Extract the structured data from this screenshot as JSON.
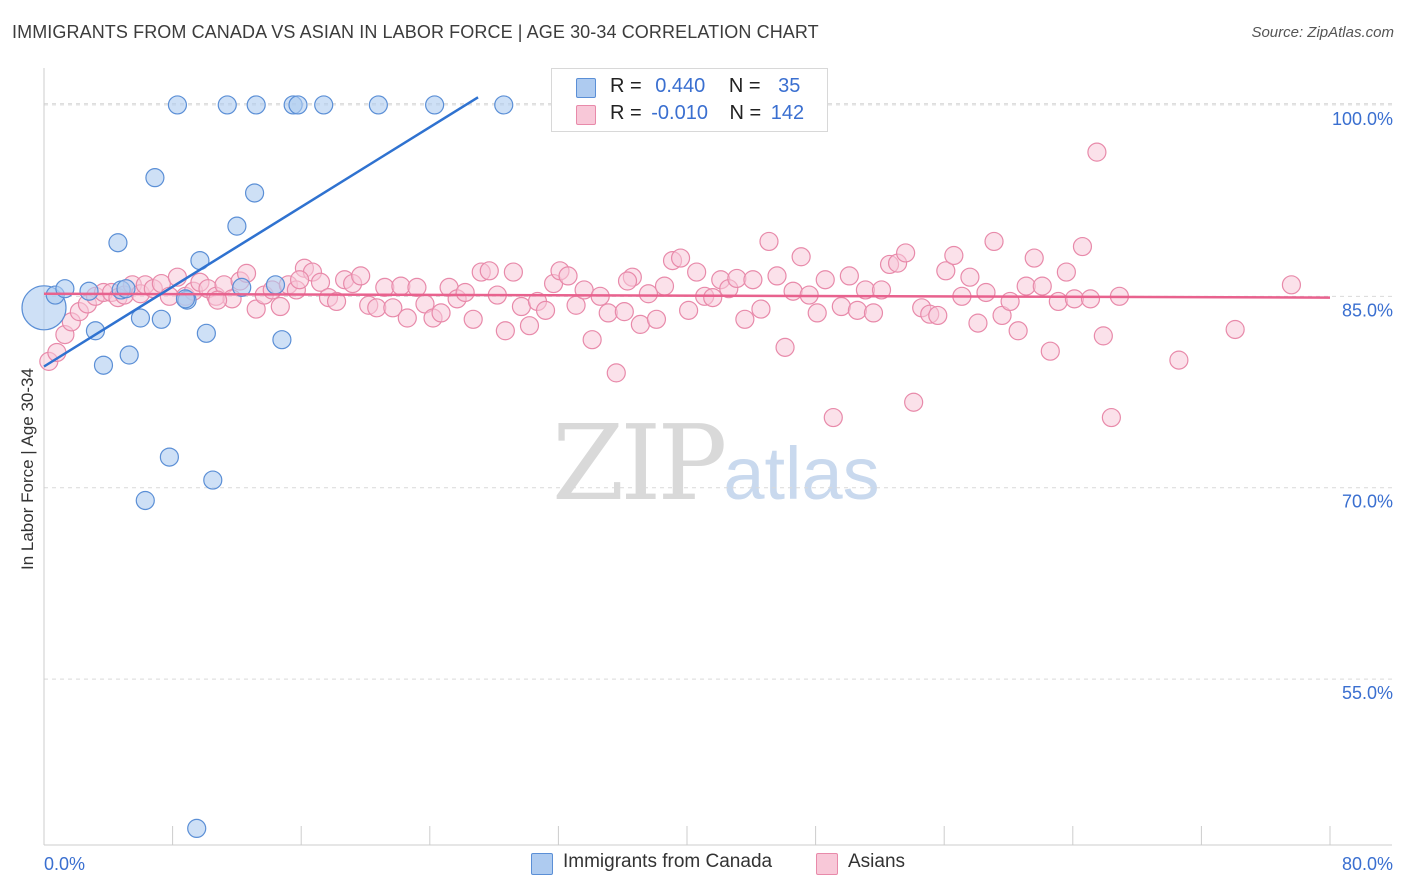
{
  "header": {
    "title": "IMMIGRANTS FROM CANADA VS ASIAN IN LABOR FORCE | AGE 30-34 CORRELATION CHART",
    "source": "Source: ZipAtlas.com"
  },
  "legend": {
    "rows": [
      {
        "r_label": "R =",
        "r_value": "0.440",
        "n_label": "N =",
        "n_value": "35"
      },
      {
        "r_label": "R =",
        "r_value": "-0.010",
        "n_label": "N =",
        "n_value": "142"
      }
    ]
  },
  "bottom_legend": {
    "items": [
      {
        "label": "Immigrants from Canada"
      },
      {
        "label": "Asians"
      }
    ]
  },
  "watermark": {
    "zip": "ZIP",
    "atlas": "atlas"
  },
  "colors": {
    "blue_fill": "#aecbf0",
    "blue_stroke": "#5b8fd6",
    "blue_line": "#2f72d0",
    "pink_fill": "#f8c8d8",
    "pink_stroke": "#e88aaa",
    "pink_line": "#e8628e",
    "tick_text": "#3a6fd0",
    "grid": "#d9d9d9"
  },
  "chart_data": {
    "type": "scatter",
    "title": "IMMIGRANTS FROM CANADA VS ASIAN IN LABOR FORCE | AGE 30-34 CORRELATION CHART",
    "xlabel": "",
    "ylabel": "In Labor Force | Age 30-34",
    "xlim": [
      0,
      80
    ],
    "ylim": [
      42,
      101
    ],
    "x_tick_labels": [
      "0.0%",
      "80.0%"
    ],
    "y_ticks": [
      55,
      70,
      85,
      100
    ],
    "y_tick_labels": [
      "55.0%",
      "70.0%",
      "85.0%",
      "100.0%"
    ],
    "grid": "horizontal dashed",
    "legend_placement": "top-center",
    "series": [
      {
        "name": "Immigrants from Canada",
        "color": "#5b8fd6",
        "trendline": {
          "x": [
            0.0,
            27.0
          ],
          "y": [
            79.5,
            100.6
          ]
        },
        "points": [
          {
            "x": 0.0,
            "y": 84.1,
            "big": true
          },
          {
            "x": 0.7,
            "y": 85.1
          },
          {
            "x": 1.3,
            "y": 85.6
          },
          {
            "x": 2.8,
            "y": 85.4
          },
          {
            "x": 3.2,
            "y": 82.3
          },
          {
            "x": 3.7,
            "y": 79.6
          },
          {
            "x": 4.6,
            "y": 89.2
          },
          {
            "x": 4.8,
            "y": 85.5
          },
          {
            "x": 5.1,
            "y": 85.6
          },
          {
            "x": 5.3,
            "y": 80.4
          },
          {
            "x": 6.0,
            "y": 83.3
          },
          {
            "x": 6.3,
            "y": 69.0
          },
          {
            "x": 6.9,
            "y": 94.3
          },
          {
            "x": 7.3,
            "y": 83.2
          },
          {
            "x": 7.8,
            "y": 72.4
          },
          {
            "x": 8.3,
            "y": 100.0
          },
          {
            "x": 8.9,
            "y": 84.7
          },
          {
            "x": 9.5,
            "y": 43.3
          },
          {
            "x": 9.7,
            "y": 87.8
          },
          {
            "x": 10.1,
            "y": 82.1
          },
          {
            "x": 10.5,
            "y": 70.6
          },
          {
            "x": 11.4,
            "y": 100.0
          },
          {
            "x": 12.0,
            "y": 90.5
          },
          {
            "x": 12.3,
            "y": 85.7
          },
          {
            "x": 13.1,
            "y": 93.1
          },
          {
            "x": 13.2,
            "y": 100.0
          },
          {
            "x": 14.4,
            "y": 85.9
          },
          {
            "x": 14.8,
            "y": 81.6
          },
          {
            "x": 15.5,
            "y": 100.0
          },
          {
            "x": 15.8,
            "y": 100.0
          },
          {
            "x": 17.4,
            "y": 100.0
          },
          {
            "x": 20.8,
            "y": 100.0
          },
          {
            "x": 24.3,
            "y": 100.0
          },
          {
            "x": 28.6,
            "y": 100.0
          },
          {
            "x": 8.8,
            "y": 84.8
          }
        ]
      },
      {
        "name": "Asians",
        "color": "#e88aaa",
        "trendline": {
          "x": [
            0.0,
            80.0
          ],
          "y": [
            85.2,
            84.9
          ]
        },
        "points": [
          {
            "x": 0.3,
            "y": 79.9
          },
          {
            "x": 0.8,
            "y": 80.6
          },
          {
            "x": 1.3,
            "y": 82.0
          },
          {
            "x": 1.7,
            "y": 83.0
          },
          {
            "x": 2.2,
            "y": 83.8
          },
          {
            "x": 2.7,
            "y": 84.4
          },
          {
            "x": 3.2,
            "y": 85.0
          },
          {
            "x": 3.7,
            "y": 85.3
          },
          {
            "x": 4.2,
            "y": 85.3
          },
          {
            "x": 4.6,
            "y": 84.9
          },
          {
            "x": 5.0,
            "y": 85.1
          },
          {
            "x": 5.5,
            "y": 85.9
          },
          {
            "x": 6.0,
            "y": 85.2
          },
          {
            "x": 6.3,
            "y": 85.9
          },
          {
            "x": 6.8,
            "y": 85.6
          },
          {
            "x": 7.3,
            "y": 86.0
          },
          {
            "x": 7.8,
            "y": 85.0
          },
          {
            "x": 8.3,
            "y": 86.5
          },
          {
            "x": 8.8,
            "y": 85.0
          },
          {
            "x": 9.3,
            "y": 85.4
          },
          {
            "x": 9.7,
            "y": 86.1
          },
          {
            "x": 10.2,
            "y": 85.6
          },
          {
            "x": 10.7,
            "y": 85.0
          },
          {
            "x": 11.2,
            "y": 85.9
          },
          {
            "x": 11.7,
            "y": 84.8
          },
          {
            "x": 12.2,
            "y": 86.2
          },
          {
            "x": 12.6,
            "y": 86.8
          },
          {
            "x": 13.2,
            "y": 84.0
          },
          {
            "x": 13.7,
            "y": 85.1
          },
          {
            "x": 14.2,
            "y": 85.5
          },
          {
            "x": 14.7,
            "y": 84.2
          },
          {
            "x": 15.2,
            "y": 85.9
          },
          {
            "x": 15.7,
            "y": 85.5
          },
          {
            "x": 16.2,
            "y": 87.2
          },
          {
            "x": 16.7,
            "y": 86.9
          },
          {
            "x": 17.2,
            "y": 86.1
          },
          {
            "x": 17.7,
            "y": 84.9
          },
          {
            "x": 18.2,
            "y": 84.6
          },
          {
            "x": 18.7,
            "y": 86.3
          },
          {
            "x": 19.2,
            "y": 86.0
          },
          {
            "x": 19.7,
            "y": 86.6
          },
          {
            "x": 20.2,
            "y": 84.3
          },
          {
            "x": 20.7,
            "y": 84.1
          },
          {
            "x": 21.2,
            "y": 85.7
          },
          {
            "x": 21.7,
            "y": 84.1
          },
          {
            "x": 22.2,
            "y": 85.8
          },
          {
            "x": 22.6,
            "y": 83.3
          },
          {
            "x": 23.2,
            "y": 85.7
          },
          {
            "x": 23.7,
            "y": 84.4
          },
          {
            "x": 24.2,
            "y": 83.3
          },
          {
            "x": 24.7,
            "y": 83.7
          },
          {
            "x": 25.2,
            "y": 85.7
          },
          {
            "x": 25.7,
            "y": 84.8
          },
          {
            "x": 26.2,
            "y": 85.3
          },
          {
            "x": 26.7,
            "y": 83.2
          },
          {
            "x": 27.2,
            "y": 86.9
          },
          {
            "x": 27.7,
            "y": 87.0
          },
          {
            "x": 28.2,
            "y": 85.1
          },
          {
            "x": 28.7,
            "y": 82.3
          },
          {
            "x": 29.2,
            "y": 86.9
          },
          {
            "x": 29.7,
            "y": 84.2
          },
          {
            "x": 30.2,
            "y": 82.7
          },
          {
            "x": 30.7,
            "y": 84.6
          },
          {
            "x": 31.2,
            "y": 83.9
          },
          {
            "x": 31.7,
            "y": 86.0
          },
          {
            "x": 32.1,
            "y": 87.0
          },
          {
            "x": 32.6,
            "y": 86.6
          },
          {
            "x": 33.1,
            "y": 84.3
          },
          {
            "x": 33.6,
            "y": 85.5
          },
          {
            "x": 34.1,
            "y": 81.6
          },
          {
            "x": 34.6,
            "y": 85.0
          },
          {
            "x": 35.1,
            "y": 83.7
          },
          {
            "x": 35.6,
            "y": 79.0
          },
          {
            "x": 36.1,
            "y": 83.8
          },
          {
            "x": 36.6,
            "y": 86.5
          },
          {
            "x": 37.1,
            "y": 82.8
          },
          {
            "x": 37.6,
            "y": 85.2
          },
          {
            "x": 38.1,
            "y": 83.2
          },
          {
            "x": 38.6,
            "y": 85.8
          },
          {
            "x": 39.1,
            "y": 87.8
          },
          {
            "x": 39.6,
            "y": 88.0
          },
          {
            "x": 40.1,
            "y": 83.9
          },
          {
            "x": 40.6,
            "y": 86.9
          },
          {
            "x": 41.1,
            "y": 85.0
          },
          {
            "x": 41.6,
            "y": 84.9
          },
          {
            "x": 42.1,
            "y": 86.3
          },
          {
            "x": 42.6,
            "y": 85.6
          },
          {
            "x": 43.1,
            "y": 86.4
          },
          {
            "x": 43.6,
            "y": 83.2
          },
          {
            "x": 44.1,
            "y": 86.3
          },
          {
            "x": 44.6,
            "y": 84.0
          },
          {
            "x": 45.1,
            "y": 89.3
          },
          {
            "x": 45.6,
            "y": 86.6
          },
          {
            "x": 46.1,
            "y": 81.0
          },
          {
            "x": 46.6,
            "y": 85.4
          },
          {
            "x": 47.1,
            "y": 88.1
          },
          {
            "x": 47.6,
            "y": 85.1
          },
          {
            "x": 48.1,
            "y": 83.7
          },
          {
            "x": 48.6,
            "y": 86.3
          },
          {
            "x": 49.1,
            "y": 75.5
          },
          {
            "x": 49.6,
            "y": 84.2
          },
          {
            "x": 50.1,
            "y": 86.6
          },
          {
            "x": 50.6,
            "y": 83.9
          },
          {
            "x": 51.1,
            "y": 85.5
          },
          {
            "x": 51.6,
            "y": 83.7
          },
          {
            "x": 52.1,
            "y": 85.5
          },
          {
            "x": 52.6,
            "y": 87.5
          },
          {
            "x": 53.1,
            "y": 87.6
          },
          {
            "x": 53.6,
            "y": 88.4
          },
          {
            "x": 54.1,
            "y": 76.7
          },
          {
            "x": 54.6,
            "y": 84.1
          },
          {
            "x": 55.1,
            "y": 83.6
          },
          {
            "x": 55.6,
            "y": 83.5
          },
          {
            "x": 56.1,
            "y": 87.0
          },
          {
            "x": 56.6,
            "y": 88.2
          },
          {
            "x": 57.1,
            "y": 85.0
          },
          {
            "x": 57.6,
            "y": 86.5
          },
          {
            "x": 58.1,
            "y": 82.9
          },
          {
            "x": 58.6,
            "y": 85.3
          },
          {
            "x": 59.1,
            "y": 89.3
          },
          {
            "x": 59.6,
            "y": 83.5
          },
          {
            "x": 60.1,
            "y": 84.6
          },
          {
            "x": 60.6,
            "y": 82.3
          },
          {
            "x": 61.1,
            "y": 85.8
          },
          {
            "x": 61.6,
            "y": 88.0
          },
          {
            "x": 62.1,
            "y": 85.8
          },
          {
            "x": 62.6,
            "y": 80.7
          },
          {
            "x": 63.1,
            "y": 84.6
          },
          {
            "x": 63.6,
            "y": 86.9
          },
          {
            "x": 64.1,
            "y": 84.8
          },
          {
            "x": 64.6,
            "y": 88.9
          },
          {
            "x": 65.1,
            "y": 84.8
          },
          {
            "x": 65.5,
            "y": 96.3
          },
          {
            "x": 65.9,
            "y": 81.9
          },
          {
            "x": 66.4,
            "y": 75.5
          },
          {
            "x": 66.9,
            "y": 85.0
          },
          {
            "x": 70.6,
            "y": 80.0
          },
          {
            "x": 74.1,
            "y": 82.4
          },
          {
            "x": 77.6,
            "y": 85.9
          },
          {
            "x": 10.8,
            "y": 84.7
          },
          {
            "x": 15.9,
            "y": 86.3
          },
          {
            "x": 36.3,
            "y": 86.2
          }
        ]
      }
    ]
  }
}
